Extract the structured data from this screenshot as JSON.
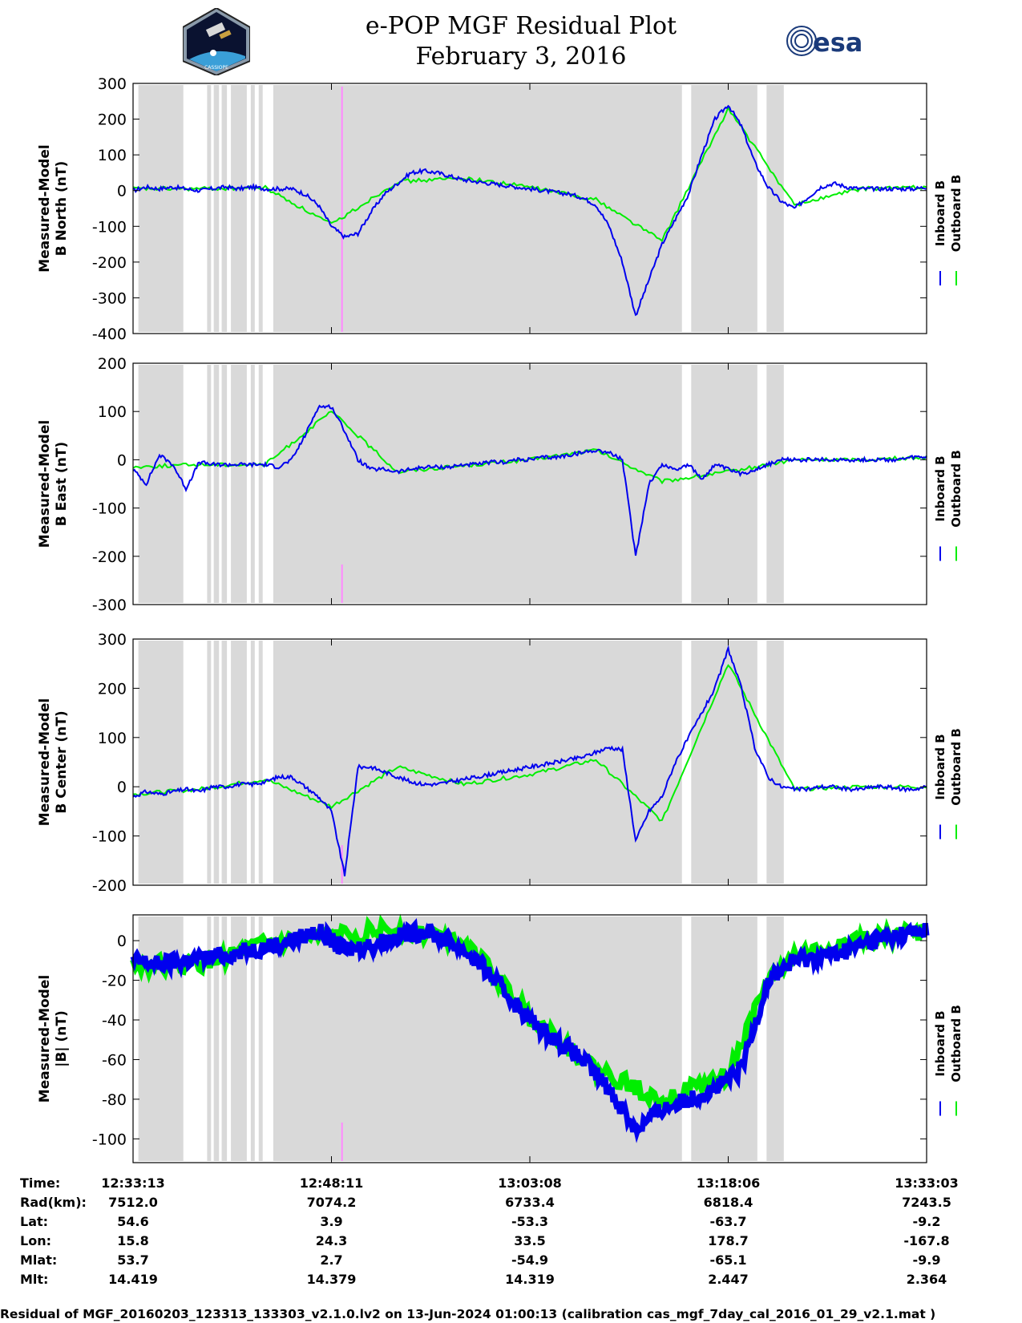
{
  "header": {
    "title": "e-POP MGF Residual Plot",
    "date": "February 3, 2016",
    "logo_left_caption": "CASSIOPE",
    "logo_right_text": "esa"
  },
  "colors": {
    "inboard": "#0000ee",
    "outboard": "#00ee00",
    "shade": "#d9d9d9",
    "marker": "#ff88ff"
  },
  "chart_data": [
    {
      "type": "line",
      "ylabel": [
        "Measured-Model",
        "B North (nT)"
      ],
      "ylim": [
        -400,
        300
      ],
      "yticks": [
        300,
        200,
        100,
        0,
        -100,
        -200,
        -300,
        -400
      ],
      "legend": [
        "Inboard B",
        "Outboard B"
      ],
      "legend_position": "right",
      "x_unit": "minutes since 12:33:13",
      "series": [
        {
          "name": "Inboard B",
          "x": [
            0,
            1,
            2,
            3,
            4,
            5,
            6,
            7,
            8,
            9,
            10,
            11,
            12,
            13,
            14,
            15,
            16,
            17,
            18,
            19,
            20,
            21,
            22,
            23,
            24,
            25,
            26,
            27,
            28,
            29,
            30,
            31,
            32,
            33,
            34,
            35,
            36,
            37,
            38,
            39,
            40,
            41,
            42,
            43,
            44,
            45,
            46,
            47,
            48,
            49,
            50,
            51,
            52,
            53,
            54,
            55,
            56,
            57,
            58,
            59,
            60
          ],
          "y": [
            0,
            10,
            5,
            10,
            5,
            0,
            5,
            10,
            5,
            10,
            5,
            5,
            5,
            -10,
            -40,
            -100,
            -130,
            -120,
            -60,
            -10,
            20,
            50,
            55,
            50,
            40,
            30,
            25,
            20,
            15,
            10,
            5,
            0,
            -5,
            -10,
            -20,
            -40,
            -100,
            -200,
            -350,
            -250,
            -150,
            -80,
            -10,
            100,
            200,
            240,
            180,
            80,
            10,
            -30,
            -50,
            -20,
            10,
            20,
            10,
            5,
            5,
            5,
            5,
            5,
            10
          ]
        },
        {
          "name": "Outboard B",
          "x": [
            0,
            5,
            10,
            15,
            20,
            25,
            30,
            35,
            40,
            45,
            50,
            55,
            60
          ],
          "y": [
            5,
            5,
            8,
            -95,
            25,
            35,
            10,
            -25,
            -140,
            230,
            -40,
            5,
            10
          ]
        }
      ]
    },
    {
      "type": "line",
      "ylabel": [
        "Measured-Model",
        "B East (nT)"
      ],
      "ylim": [
        -300,
        200
      ],
      "yticks": [
        200,
        100,
        0,
        -100,
        -200,
        -300
      ],
      "legend": [
        "Inboard B",
        "Outboard B"
      ],
      "legend_position": "right",
      "x_unit": "minutes since 12:33:13",
      "series": [
        {
          "name": "Inboard B",
          "x": [
            0,
            1,
            2,
            3,
            4,
            5,
            6,
            7,
            8,
            9,
            10,
            11,
            12,
            13,
            14,
            15,
            16,
            17,
            18,
            19,
            20,
            21,
            22,
            23,
            24,
            25,
            26,
            27,
            28,
            29,
            30,
            31,
            32,
            33,
            34,
            35,
            36,
            37,
            38,
            39,
            40,
            41,
            42,
            43,
            44,
            45,
            46,
            47,
            48,
            49,
            50,
            51,
            52,
            53,
            54,
            55,
            56,
            57,
            58,
            59,
            60
          ],
          "y": [
            -20,
            -50,
            10,
            -10,
            -60,
            -5,
            -10,
            -10,
            -10,
            -10,
            -10,
            -15,
            0,
            50,
            110,
            110,
            60,
            0,
            -20,
            -20,
            -25,
            -20,
            -15,
            -15,
            -15,
            -10,
            -10,
            -5,
            -5,
            0,
            0,
            5,
            5,
            10,
            15,
            20,
            15,
            0,
            -200,
            -50,
            -10,
            -20,
            -10,
            -40,
            -10,
            -20,
            -30,
            -20,
            -10,
            0,
            0,
            0,
            0,
            0,
            0,
            0,
            0,
            0,
            0,
            5,
            5
          ]
        },
        {
          "name": "Outboard B",
          "x": [
            0,
            5,
            10,
            15,
            20,
            25,
            30,
            35,
            40,
            45,
            50,
            55,
            60
          ],
          "y": [
            -15,
            -10,
            -10,
            100,
            -25,
            -12,
            0,
            20,
            -45,
            -25,
            0,
            0,
            5
          ]
        }
      ]
    },
    {
      "type": "line",
      "ylabel": [
        "Measured-Model",
        "B Center (nT)"
      ],
      "ylim": [
        -200,
        300
      ],
      "yticks": [
        300,
        200,
        100,
        0,
        -100,
        -200
      ],
      "legend": [
        "Inboard B",
        "Outboard B"
      ],
      "legend_position": "right",
      "x_unit": "minutes since 12:33:13",
      "series": [
        {
          "name": "Inboard B",
          "x": [
            0,
            1,
            2,
            3,
            4,
            5,
            6,
            7,
            8,
            9,
            10,
            11,
            12,
            13,
            14,
            15,
            16,
            17,
            18,
            19,
            20,
            21,
            22,
            23,
            24,
            25,
            26,
            27,
            28,
            29,
            30,
            31,
            32,
            33,
            34,
            35,
            36,
            37,
            38,
            39,
            40,
            41,
            42,
            43,
            44,
            45,
            46,
            47,
            48,
            49,
            50,
            51,
            52,
            53,
            54,
            55,
            56,
            57,
            58,
            59,
            60
          ],
          "y": [
            -20,
            -10,
            -15,
            -10,
            -5,
            -10,
            0,
            0,
            5,
            5,
            10,
            20,
            20,
            0,
            -20,
            -50,
            -180,
            40,
            40,
            30,
            20,
            10,
            5,
            5,
            10,
            15,
            20,
            25,
            30,
            35,
            40,
            45,
            50,
            55,
            60,
            70,
            80,
            75,
            -110,
            -50,
            -20,
            50,
            100,
            150,
            200,
            280,
            200,
            80,
            20,
            0,
            -5,
            -5,
            0,
            0,
            -5,
            -5,
            0,
            0,
            -5,
            -5,
            0
          ]
        },
        {
          "name": "Outboard B",
          "x": [
            0,
            5,
            10,
            15,
            20,
            25,
            30,
            35,
            40,
            45,
            50,
            55,
            60
          ],
          "y": [
            -15,
            -5,
            15,
            -40,
            40,
            5,
            25,
            55,
            -70,
            250,
            -5,
            0,
            0
          ]
        }
      ]
    },
    {
      "type": "line",
      "ylabel": [
        "Measured-Model",
        "|B| (nT)"
      ],
      "ylim": [
        -112,
        13
      ],
      "yticks": [
        0,
        -20,
        -40,
        -60,
        -80,
        -100
      ],
      "legend": [
        "Inboard B",
        "Outboard B"
      ],
      "legend_position": "right",
      "x_unit": "minutes since 12:33:13",
      "series": [
        {
          "name": "Inboard B",
          "x": [
            0,
            2,
            4,
            6,
            8,
            10,
            12,
            14,
            15,
            16,
            18,
            20,
            22,
            24,
            26,
            28,
            30,
            32,
            34,
            36,
            38,
            40,
            42,
            44,
            46,
            48,
            50,
            52,
            54,
            56,
            58,
            60
          ],
          "y": [
            -10,
            -12,
            -10,
            -8,
            -6,
            -3,
            0,
            5,
            0,
            -5,
            -2,
            2,
            5,
            0,
            -10,
            -25,
            -40,
            -50,
            -60,
            -75,
            -95,
            -85,
            -80,
            -75,
            -65,
            -20,
            -10,
            -8,
            -5,
            0,
            3,
            5
          ]
        },
        {
          "name": "Outboard B",
          "x": [
            0,
            5,
            10,
            15,
            20,
            25,
            30,
            35,
            40,
            45,
            48,
            50,
            55,
            60
          ],
          "y": [
            -12,
            -12,
            -2,
            2,
            6,
            0,
            -38,
            -65,
            -80,
            -68,
            -20,
            -8,
            0,
            5
          ]
        }
      ]
    }
  ],
  "x_ticks": [
    "12:33:13",
    "12:48:11",
    "13:03:08",
    "13:18:06",
    "13:33:03"
  ],
  "ephemeris": {
    "row_labels": [
      "Time:",
      "Rad(km):",
      "Lat:",
      "Lon:",
      "Mlat:",
      "Mlt:"
    ],
    "columns": [
      [
        "12:33:13",
        "7512.0",
        "54.6",
        "15.8",
        "53.7",
        "14.419"
      ],
      [
        "12:48:11",
        "7074.2",
        "3.9",
        "24.3",
        "2.7",
        "14.379"
      ],
      [
        "13:03:08",
        "6733.4",
        "-53.3",
        "33.5",
        "-54.9",
        "14.319"
      ],
      [
        "13:18:06",
        "6818.4",
        "-63.7",
        "178.7",
        "-65.1",
        "2.447"
      ],
      [
        "13:33:03",
        "7243.5",
        "-9.2",
        "-167.8",
        "-9.9",
        "2.364"
      ]
    ]
  },
  "footer": "Residual of MGF_20160203_123313_133303_v2.1.0.lv2 on 13-Jun-2024 01:00:13 (calibration cas_mgf_7day_cal_2016_01_29_v2.1.mat )"
}
